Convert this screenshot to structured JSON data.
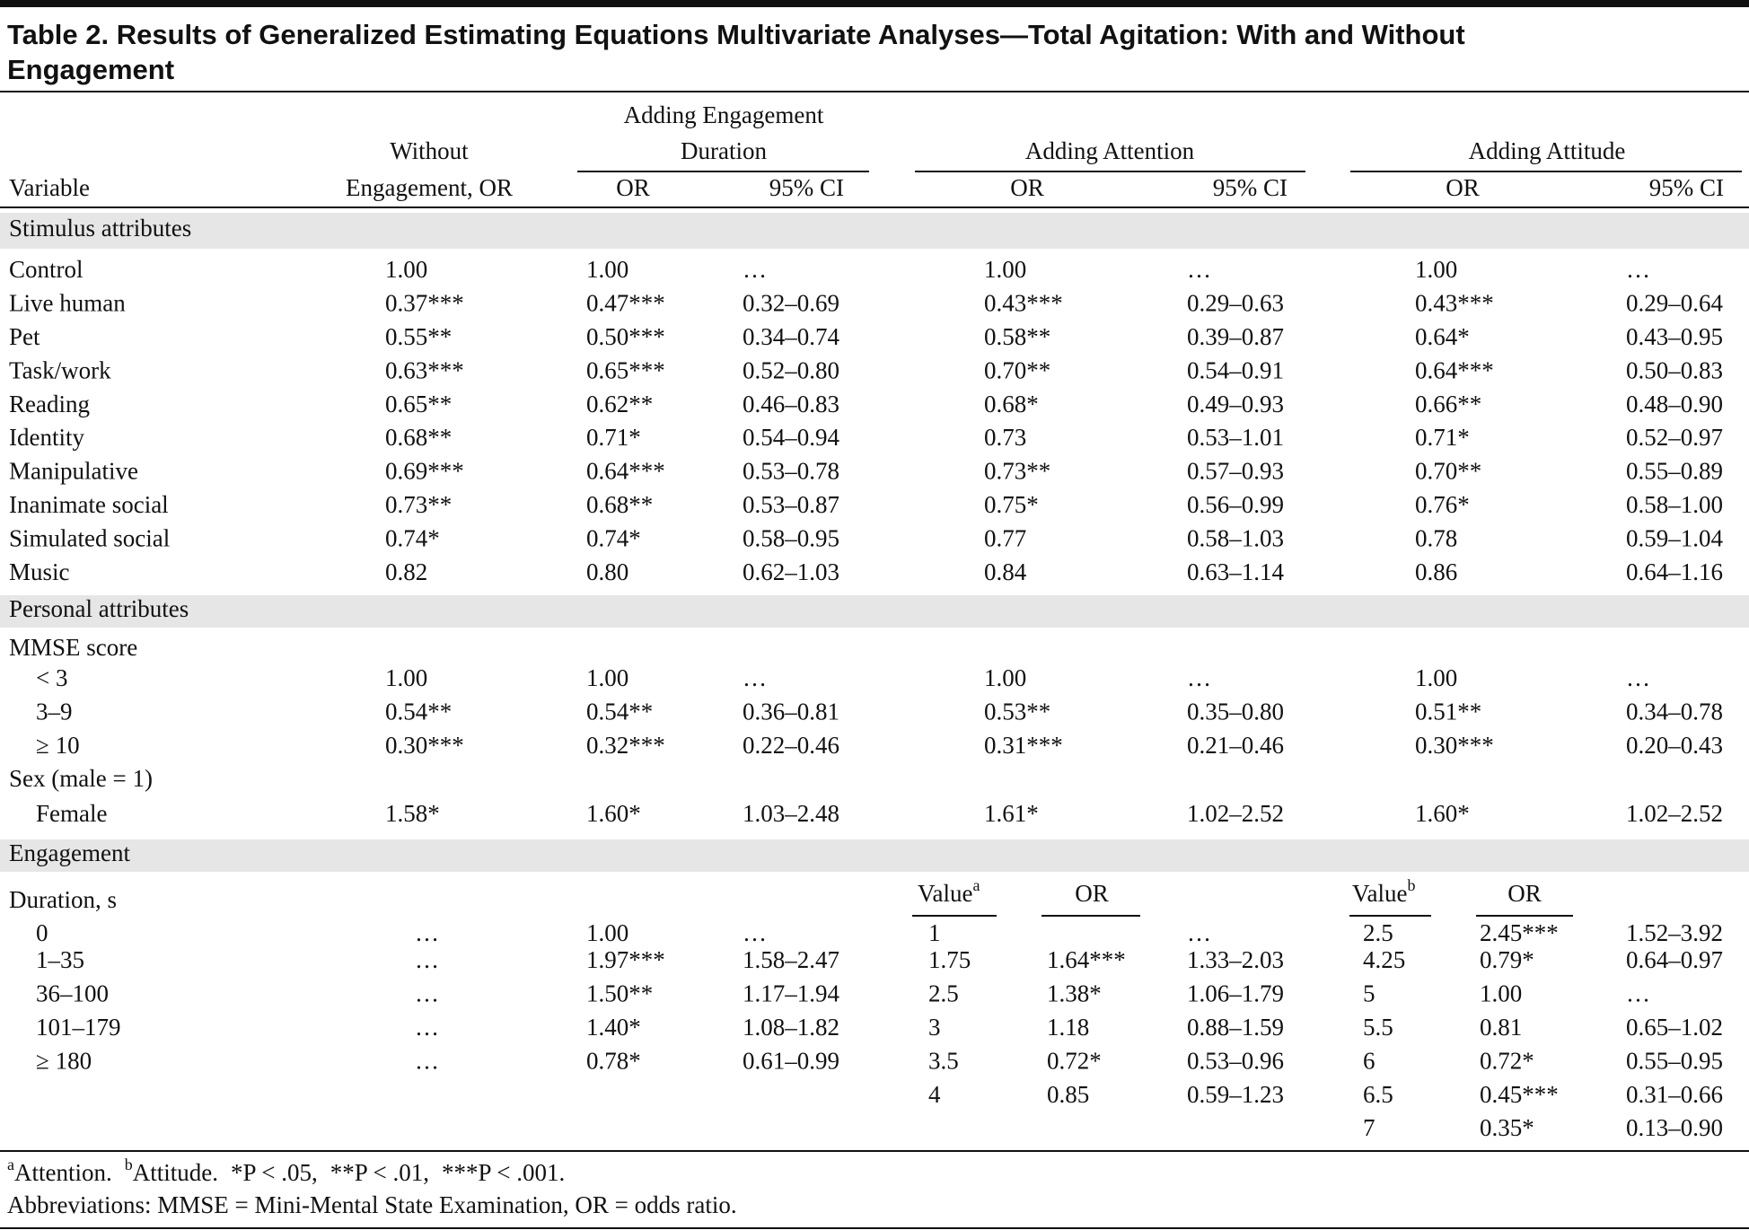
{
  "title": [
    "Table 2. Results of Generalized Estimating Equations Multivariate Analyses—Total Agitation: With and Without",
    "Engagement"
  ],
  "header": {
    "variable": "Variable",
    "without": [
      "Without",
      "Engagement, OR"
    ],
    "groups": [
      {
        "title": [
          "Adding Engagement",
          "Duration"
        ],
        "sub": [
          "OR",
          "95% CI"
        ]
      },
      {
        "title": [
          "Adding Attention"
        ],
        "sub": [
          "OR",
          "95% CI"
        ]
      },
      {
        "title": [
          "Adding Attitude"
        ],
        "sub": [
          "OR",
          "95% CI"
        ]
      }
    ]
  },
  "sections": [
    {
      "label": "Stimulus attributes",
      "rows": [
        [
          "Control",
          "1.00",
          "1.00",
          "…",
          "1.00",
          "…",
          "1.00",
          "…"
        ],
        [
          "Live human",
          "0.37***",
          "0.47***",
          "0.32–0.69",
          "0.43***",
          "0.29–0.63",
          "0.43***",
          "0.29–0.64"
        ],
        [
          "Pet",
          "0.55**",
          "0.50***",
          "0.34–0.74",
          "0.58**",
          "0.39–0.87",
          "0.64*",
          "0.43–0.95"
        ],
        [
          "Task/work",
          "0.63***",
          "0.65***",
          "0.52–0.80",
          "0.70**",
          "0.54–0.91",
          "0.64***",
          "0.50–0.83"
        ],
        [
          "Reading",
          "0.65**",
          "0.62**",
          "0.46–0.83",
          "0.68*",
          "0.49–0.93",
          "0.66**",
          "0.48–0.90"
        ],
        [
          "Identity",
          "0.68**",
          "0.71*",
          "0.54–0.94",
          "0.73",
          "0.53–1.01",
          "0.71*",
          "0.52–0.97"
        ],
        [
          "Manipulative",
          "0.69***",
          "0.64***",
          "0.53–0.78",
          "0.73**",
          "0.57–0.93",
          "0.70**",
          "0.55–0.89"
        ],
        [
          "Inanimate social",
          "0.73**",
          "0.68**",
          "0.53–0.87",
          "0.75*",
          "0.56–0.99",
          "0.76*",
          "0.58–1.00"
        ],
        [
          "Simulated social",
          "0.74*",
          "0.74*",
          "0.58–0.95",
          "0.77",
          "0.58–1.03",
          "0.78",
          "0.59–1.04"
        ],
        [
          "Music",
          "0.82",
          "0.80",
          "0.62–1.03",
          "0.84",
          "0.63–1.14",
          "0.86",
          "0.64–1.16"
        ]
      ]
    },
    {
      "label": "Personal attributes",
      "groups": [
        {
          "label": "MMSE score",
          "rows": [
            [
              "< 3",
              "1.00",
              "1.00",
              "…",
              "1.00",
              "…",
              "1.00",
              "…"
            ],
            [
              "3–9",
              "0.54**",
              "0.54**",
              "0.36–0.81",
              "0.53**",
              "0.35–0.80",
              "0.51**",
              "0.34–0.78"
            ],
            [
              "≥ 10",
              "0.30***",
              "0.32***",
              "0.22–0.46",
              "0.31***",
              "0.21–0.46",
              "0.30***",
              "0.20–0.43"
            ]
          ]
        },
        {
          "label": "Sex (male = 1)",
          "rows": [
            [
              "Female",
              "1.58*",
              "1.60*",
              "1.03–2.48",
              "1.61*",
              "1.02–2.52",
              "1.60*",
              "1.02–2.52"
            ]
          ]
        }
      ]
    }
  ],
  "engagement": {
    "label": "Engagement",
    "duration": {
      "label": "Duration, s",
      "rows": [
        [
          "0",
          "…",
          "1.00",
          "…"
        ],
        [
          "1–35",
          "…",
          "1.97***",
          "1.58–2.47"
        ],
        [
          "36–100",
          "…",
          "1.50**",
          "1.17–1.94"
        ],
        [
          "101–179",
          "…",
          "1.40*",
          "1.08–1.82"
        ],
        [
          "≥ 180",
          "…",
          "0.78*",
          "0.61–0.99"
        ]
      ]
    },
    "attention": {
      "value_header": {
        "text": "Value",
        "sup": "a"
      },
      "or_header": "OR",
      "rows": [
        [
          "1",
          null,
          "…"
        ],
        [
          "1.75",
          "1.64***",
          "1.33–2.03"
        ],
        [
          "2.5",
          "1.38*",
          "1.06–1.79"
        ],
        [
          "3",
          "1.18",
          "0.88–1.59"
        ],
        [
          "3.5",
          "0.72*",
          "0.53–0.96"
        ],
        [
          "4",
          "0.85",
          "0.59–1.23"
        ]
      ]
    },
    "attitude": {
      "value_header": {
        "text": "Value",
        "sup": "b"
      },
      "or_header": "OR",
      "rows": [
        [
          "2.5",
          "2.45***",
          "1.52–3.92"
        ],
        [
          "4.25",
          "0.79*",
          "0.64–0.97"
        ],
        [
          "5",
          "1.00",
          "…"
        ],
        [
          "5.5",
          "0.81",
          "0.65–1.02"
        ],
        [
          "6",
          "0.72*",
          "0.55–0.95"
        ],
        [
          "6.5",
          "0.45***",
          "0.31–0.66"
        ],
        [
          "7",
          "0.35*",
          "0.13–0.90"
        ]
      ]
    }
  },
  "footnotes": {
    "notes": [
      {
        "sup": "a",
        "text": "Attention."
      },
      {
        "sup": "b",
        "text": "Attitude."
      }
    ],
    "significance": [
      "*P < .05,",
      "**P < .01,",
      "***P < .001."
    ],
    "abbreviations": "Abbreviations: MMSE = Mini-Mental State Examination, OR = odds ratio."
  }
}
